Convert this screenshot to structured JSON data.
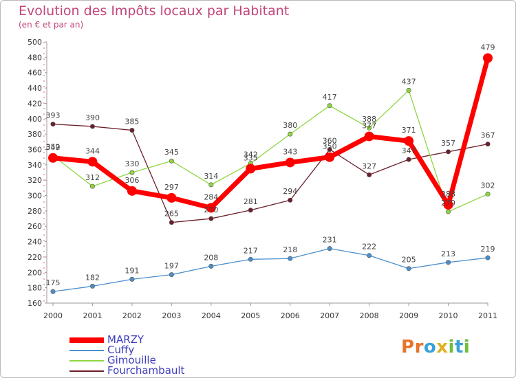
{
  "title": "Evolution des Impôts locaux par Habitant",
  "subtitle": "(en € et par an)",
  "logo_text": "Proxiti",
  "chart_data": {
    "type": "line",
    "title": "Evolution des Impôts locaux par Habitant",
    "subtitle": "(en € et par an)",
    "xlabel": "",
    "ylabel": "",
    "ylim": [
      160,
      500
    ],
    "ytick_step": 20,
    "x": [
      "2000",
      "2001",
      "2002",
      "2003",
      "2004",
      "2005",
      "2006",
      "2007",
      "2008",
      "2009",
      "2010",
      "2011"
    ],
    "grid": false,
    "legend_position": "bottom-left",
    "series": [
      {
        "name": "Fourchambault",
        "color": "#6b1f2a",
        "values": [
          393,
          390,
          385,
          265,
          270,
          281,
          294,
          360,
          327,
          347,
          357,
          367
        ]
      },
      {
        "name": "Gimouille",
        "color": "#8ed640",
        "values": [
          352,
          312,
          330,
          345,
          314,
          342,
          380,
          417,
          388,
          437,
          279,
          302
        ]
      },
      {
        "name": "Cuffy",
        "color": "#4a8fcc",
        "values": [
          175,
          182,
          191,
          197,
          208,
          217,
          218,
          231,
          222,
          205,
          213,
          219
        ]
      },
      {
        "name": "MARZY",
        "color": "#ff0000",
        "values": [
          349,
          344,
          306,
          297,
          284,
          335,
          343,
          350,
          377,
          371,
          288,
          479
        ]
      }
    ],
    "legend": [
      "MARZY",
      "Cuffy",
      "Gimouille",
      "Fourchambault"
    ]
  }
}
